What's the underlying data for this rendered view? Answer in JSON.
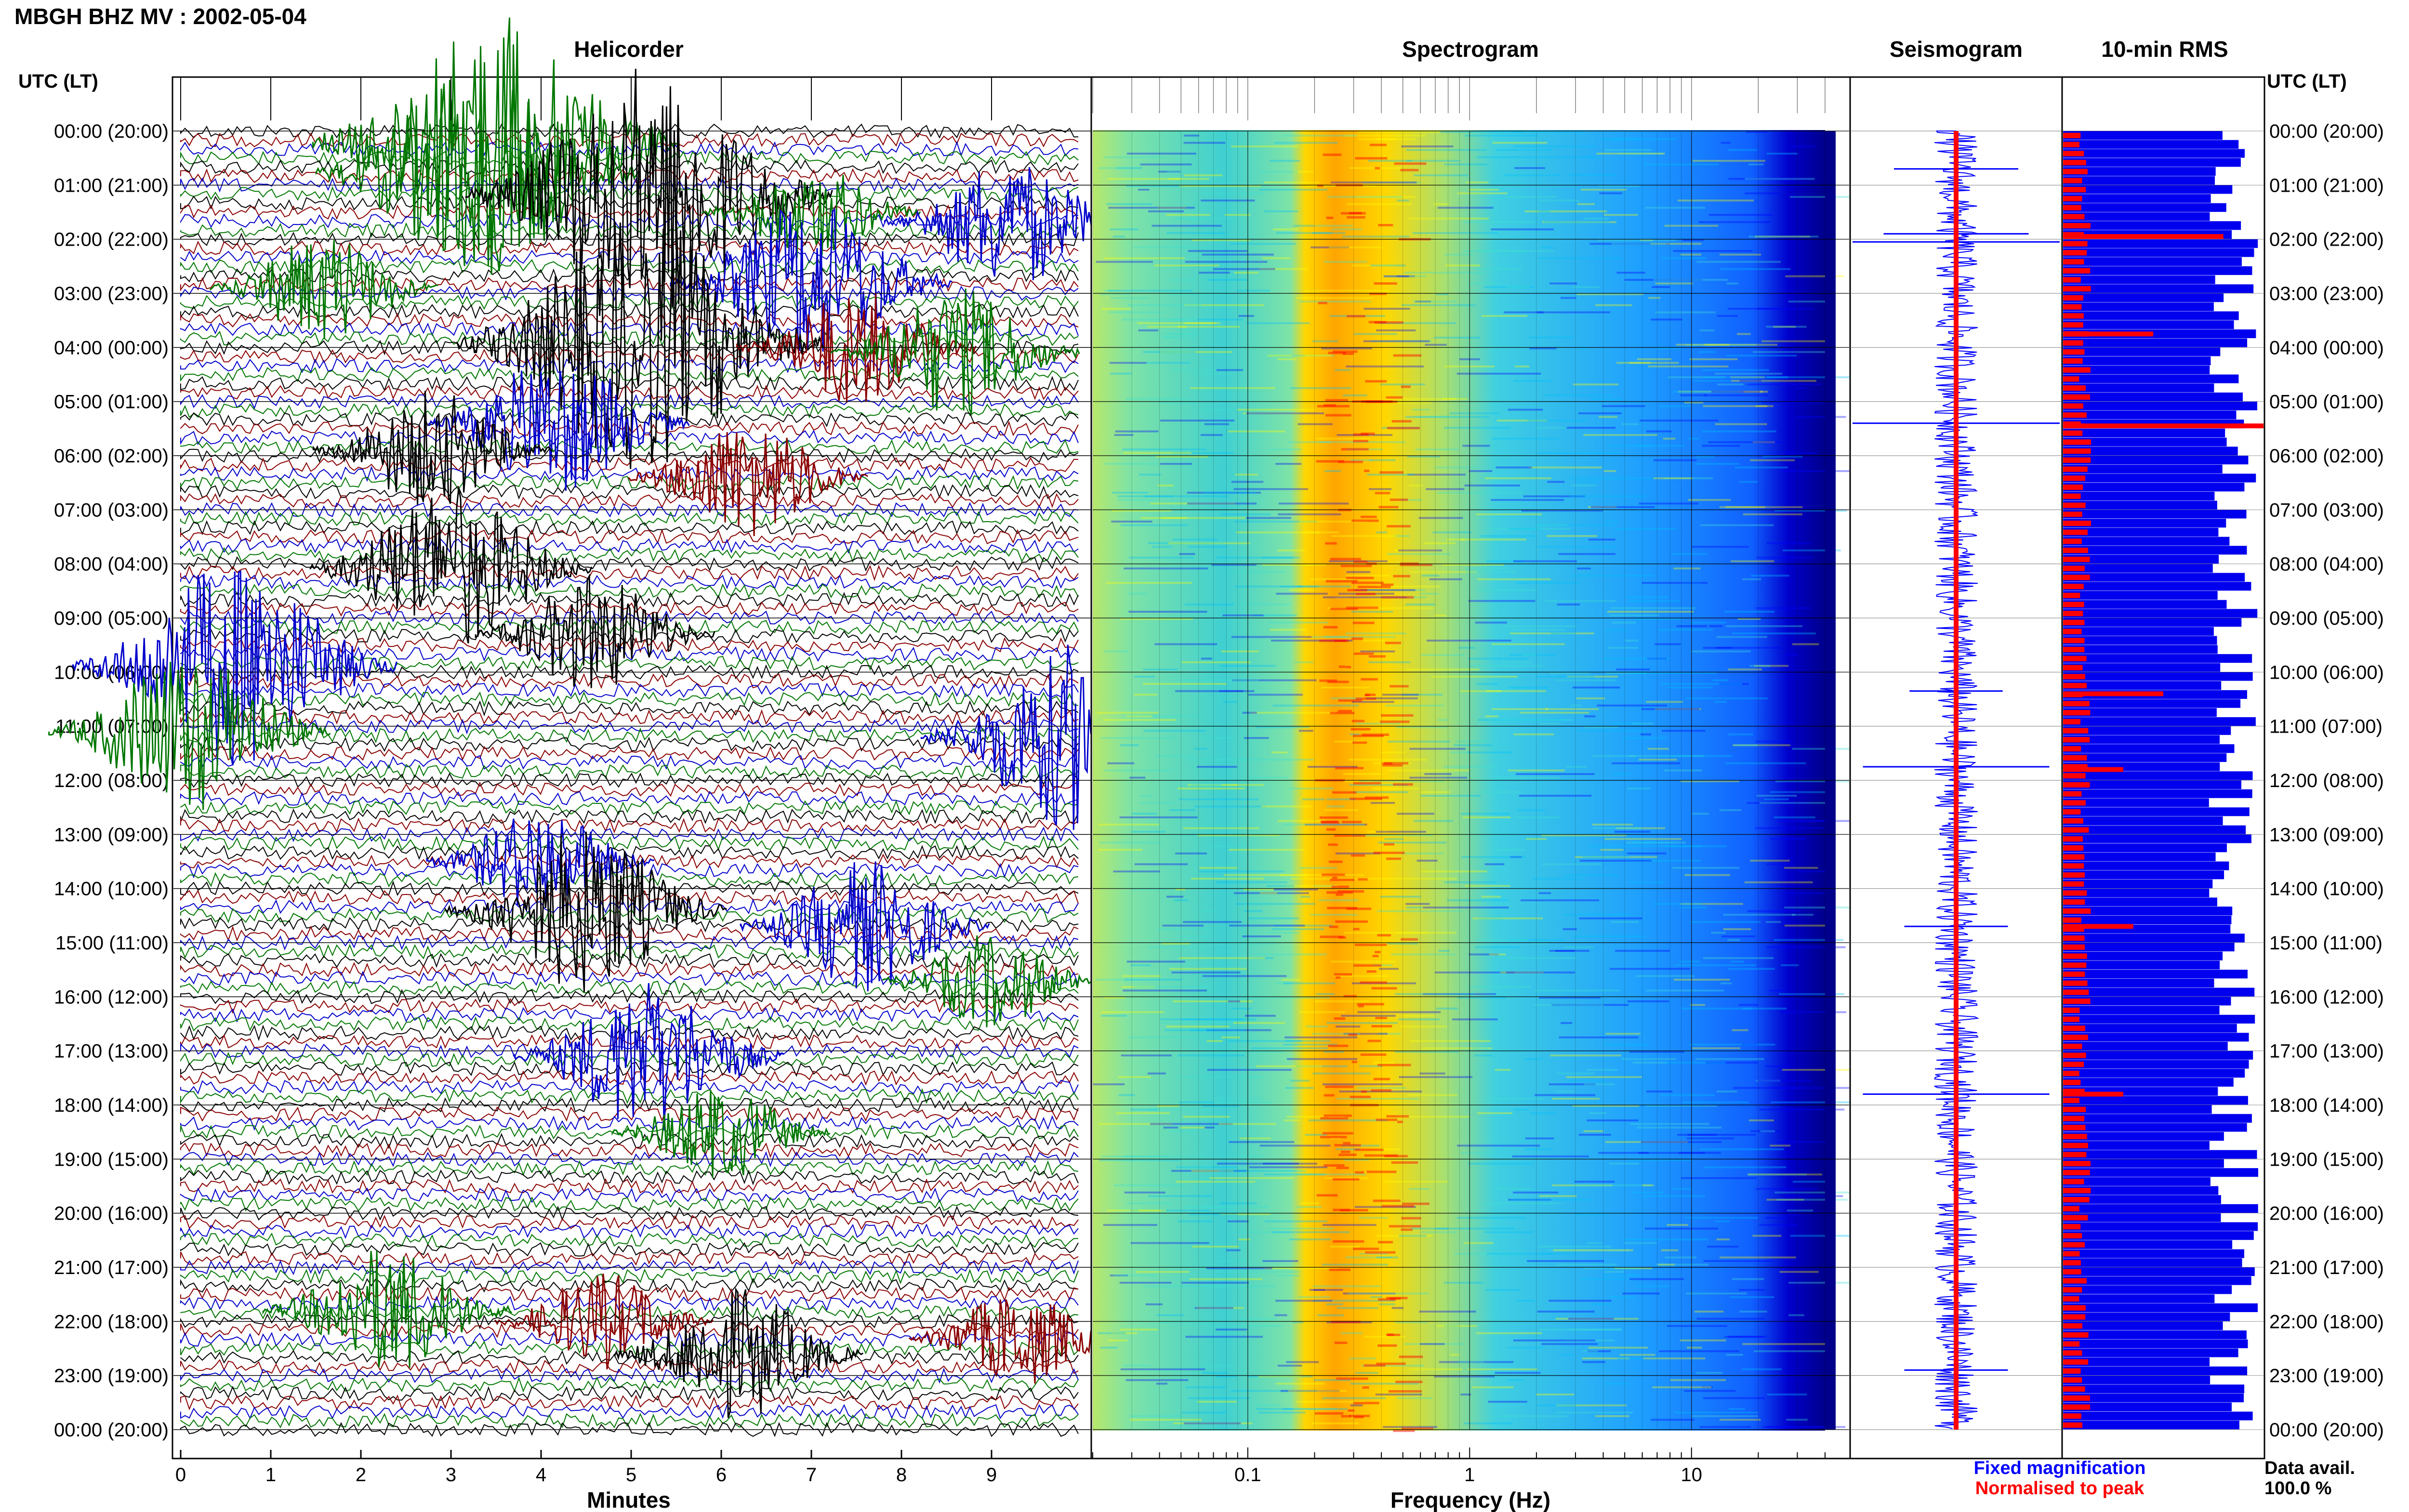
{
  "figure": {
    "title": "MBGH BHZ MV : 2002-05-04",
    "utc_header_left": "UTC (LT)",
    "utc_header_right": "UTC (LT)",
    "legend": {
      "fixed": "Fixed magnification",
      "normalised": "Normalised to peak"
    },
    "availability": {
      "label": "Data avail.",
      "value": "100.0 %"
    },
    "colors": {
      "black": "#000000",
      "red": "#8b0000",
      "blue": "#0000cc",
      "green": "#007700",
      "seis_blue": "#0000ff",
      "seis_red": "#ff0000",
      "rms_blue": "#0000ee",
      "rms_red": "#ff0000"
    }
  },
  "time_labels": [
    "00:00 (20:00)",
    "01:00 (21:00)",
    "02:00 (22:00)",
    "03:00 (23:00)",
    "04:00 (00:00)",
    "05:00 (01:00)",
    "06:00 (02:00)",
    "07:00 (03:00)",
    "08:00 (04:00)",
    "09:00 (05:00)",
    "10:00 (06:00)",
    "11:00 (07:00)",
    "12:00 (08:00)",
    "13:00 (09:00)",
    "14:00 (10:00)",
    "15:00 (11:00)",
    "16:00 (12:00)",
    "17:00 (13:00)",
    "18:00 (14:00)",
    "19:00 (15:00)",
    "20:00 (16:00)",
    "21:00 (17:00)",
    "22:00 (18:00)",
    "23:00 (19:00)",
    "00:00 (20:00)"
  ],
  "chart_data": [
    {
      "type": "line",
      "title": "Helicorder",
      "xlabel": "Minutes",
      "x_ticks": [
        "0",
        "1",
        "2",
        "3",
        "4",
        "5",
        "6",
        "7",
        "8",
        "9"
      ],
      "xlim": [
        0,
        10
      ],
      "rows_per_hour": 6,
      "trace_colors_cycle": [
        "black",
        "red",
        "blue",
        "green"
      ],
      "events": [
        {
          "hour": 0.2,
          "minute": 3.5,
          "amplitude": 1.0,
          "color": "green"
        },
        {
          "hour": 0.8,
          "minute": 3.3,
          "amplitude": 0.8,
          "color": "green"
        },
        {
          "hour": 1.2,
          "minute": 5.2,
          "amplitude": 1.0,
          "color": "black"
        },
        {
          "hour": 1.5,
          "minute": 7.0,
          "amplitude": 0.3,
          "color": "green"
        },
        {
          "hour": 1.7,
          "minute": 9.2,
          "amplitude": 0.45,
          "color": "blue"
        },
        {
          "hour": 2.9,
          "minute": 1.6,
          "amplitude": 0.35,
          "color": "green"
        },
        {
          "hour": 2.8,
          "minute": 7.0,
          "amplitude": 0.6,
          "color": "blue"
        },
        {
          "hour": 3.9,
          "minute": 5.1,
          "amplitude": 1.0,
          "color": "black"
        },
        {
          "hour": 4.0,
          "minute": 7.5,
          "amplitude": 0.4,
          "color": "red"
        },
        {
          "hour": 4.1,
          "minute": 8.6,
          "amplitude": 0.45,
          "color": "green"
        },
        {
          "hour": 5.4,
          "minute": 4.2,
          "amplitude": 0.5,
          "color": "blue"
        },
        {
          "hour": 5.9,
          "minute": 2.8,
          "amplitude": 0.4,
          "color": "black"
        },
        {
          "hour": 6.4,
          "minute": 6.3,
          "amplitude": 0.4,
          "color": "red"
        },
        {
          "hour": 8.1,
          "minute": 3.0,
          "amplitude": 0.6,
          "color": "black"
        },
        {
          "hour": 9.3,
          "minute": 4.6,
          "amplitude": 0.4,
          "color": "black"
        },
        {
          "hour": 9.9,
          "minute": 0.6,
          "amplitude": 0.8,
          "color": "blue"
        },
        {
          "hour": 11.1,
          "minute": 0.1,
          "amplitude": 0.6,
          "color": "green"
        },
        {
          "hour": 11.2,
          "minute": 9.9,
          "amplitude": 0.7,
          "color": "blue"
        },
        {
          "hour": 13.5,
          "minute": 4.0,
          "amplitude": 0.35,
          "color": "blue"
        },
        {
          "hour": 14.4,
          "minute": 4.5,
          "amplitude": 0.6,
          "color": "black"
        },
        {
          "hour": 14.7,
          "minute": 7.6,
          "amplitude": 0.45,
          "color": "blue"
        },
        {
          "hour": 15.7,
          "minute": 9.0,
          "amplitude": 0.3,
          "color": "green"
        },
        {
          "hour": 17.1,
          "minute": 5.2,
          "amplitude": 0.55,
          "color": "blue"
        },
        {
          "hour": 18.5,
          "minute": 6.0,
          "amplitude": 0.3,
          "color": "green"
        },
        {
          "hour": 21.8,
          "minute": 2.3,
          "amplitude": 0.45,
          "color": "green"
        },
        {
          "hour": 22.0,
          "minute": 4.7,
          "amplitude": 0.3,
          "color": "red"
        },
        {
          "hour": 22.6,
          "minute": 6.2,
          "amplitude": 0.45,
          "color": "black"
        },
        {
          "hour": 22.3,
          "minute": 9.3,
          "amplitude": 0.3,
          "color": "red"
        }
      ]
    },
    {
      "type": "heatmap",
      "title": "Spectrogram",
      "xlabel": "Frequency (Hz)",
      "x_scale": "log",
      "x_ticks": [
        "0.1",
        "1",
        "10"
      ],
      "xlim": [
        0.02,
        40
      ],
      "peak_band_hz": [
        0.2,
        0.5
      ],
      "colormap": [
        "#00008b",
        "#0000ff",
        "#00bfff",
        "#40e0d0",
        "#ffff00",
        "#ffa500",
        "#ff0000"
      ]
    },
    {
      "type": "line",
      "title": "Seismogram",
      "legend": [
        "Fixed magnification",
        "Normalised to peak"
      ],
      "spikes": [
        {
          "hour": 0.7,
          "amplitude": 0.6
        },
        {
          "hour": 1.9,
          "amplitude": 0.7
        },
        {
          "hour": 2.05,
          "amplitude": 1.0
        },
        {
          "hour": 5.4,
          "amplitude": 1.0
        },
        {
          "hour": 10.35,
          "amplitude": 0.45
        },
        {
          "hour": 11.75,
          "amplitude": 0.9
        },
        {
          "hour": 14.7,
          "amplitude": 0.5
        },
        {
          "hour": 17.8,
          "amplitude": 0.9
        },
        {
          "hour": 22.9,
          "amplitude": 0.5
        }
      ]
    },
    {
      "type": "bar",
      "title": "10-min RMS",
      "orientation": "horizontal",
      "bins_per_hour": 6,
      "fixed_magnification_mean_level": 0.85,
      "normalised_peaks": [
        {
          "hour": 1.95,
          "value": 0.8
        },
        {
          "hour": 3.75,
          "value": 0.45
        },
        {
          "hour": 5.45,
          "value": 1.0
        },
        {
          "hour": 10.4,
          "value": 0.5
        },
        {
          "hour": 11.8,
          "value": 0.3
        },
        {
          "hour": 14.7,
          "value": 0.35
        },
        {
          "hour": 17.8,
          "value": 0.3
        }
      ]
    }
  ]
}
